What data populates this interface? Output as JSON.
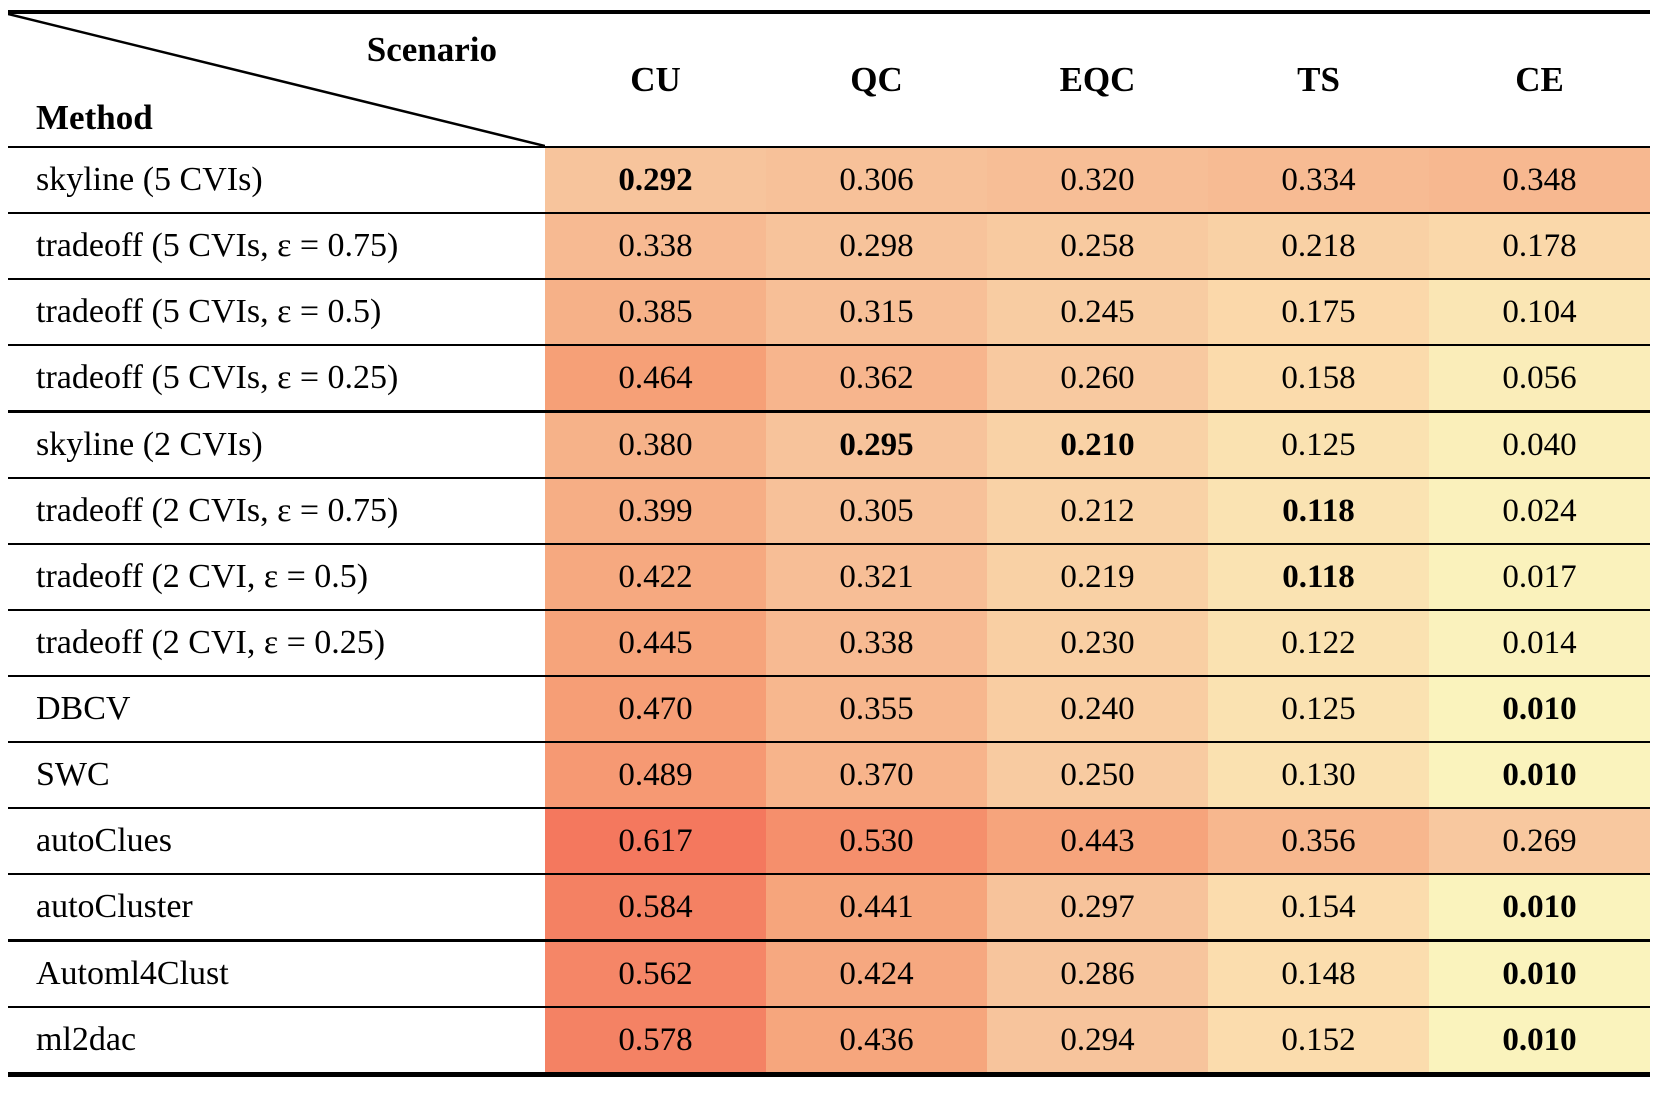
{
  "table": {
    "corner": {
      "top_label": "Scenario",
      "bottom_label": "Method"
    },
    "columns": [
      "CU",
      "QC",
      "EQC",
      "TS",
      "CE"
    ],
    "rows": [
      {
        "method": "skyline (5 CVIs)",
        "values": [
          "0.292",
          "0.306",
          "0.320",
          "0.334",
          "0.348"
        ],
        "bold": [
          true,
          false,
          false,
          false,
          false
        ],
        "colors": [
          "#F7C49C",
          "#F7C199",
          "#F7BE96",
          "#F7BB93",
          "#F7B890"
        ],
        "thick_bottom": false
      },
      {
        "method": "tradeoff (5 CVIs, ε = 0.75)",
        "values": [
          "0.338",
          "0.298",
          "0.258",
          "0.218",
          "0.178"
        ],
        "bold": [
          false,
          false,
          false,
          false,
          false
        ],
        "colors": [
          "#F7BA92",
          "#F7C39B",
          "#F8CAA0",
          "#F9D1A5",
          "#FAD8AA"
        ],
        "thick_bottom": false
      },
      {
        "method": "tradeoff (5 CVIs, ε = 0.5)",
        "values": [
          "0.385",
          "0.315",
          "0.245",
          "0.175",
          "0.104"
        ],
        "bold": [
          false,
          false,
          false,
          false,
          false
        ],
        "colors": [
          "#F6B188",
          "#F7BF97",
          "#F8CCA2",
          "#FBD8AA",
          "#FAE6B4"
        ],
        "thick_bottom": false
      },
      {
        "method": "tradeoff (5 CVIs, ε = 0.25)",
        "values": [
          "0.464",
          "0.362",
          "0.260",
          "0.158",
          "0.056"
        ],
        "bold": [
          false,
          false,
          false,
          false,
          false
        ],
        "colors": [
          "#F6A077",
          "#F7B58D",
          "#F8C9A0",
          "#FBDBAC",
          "#FAEDB9"
        ],
        "thick_bottom": true
      },
      {
        "method": "skyline (2 CVIs)",
        "values": [
          "0.380",
          "0.295",
          "0.210",
          "0.125",
          "0.040"
        ],
        "bold": [
          false,
          true,
          true,
          false,
          false
        ],
        "colors": [
          "#F6B289",
          "#F7C39B",
          "#F9D2A6",
          "#FAE2B1",
          "#FAEFBA"
        ],
        "thick_bottom": false
      },
      {
        "method": "tradeoff (2 CVIs, ε = 0.75)",
        "values": [
          "0.399",
          "0.305",
          "0.212",
          "0.118",
          "0.024"
        ],
        "bold": [
          false,
          false,
          false,
          true,
          false
        ],
        "colors": [
          "#F6AE85",
          "#F7C199",
          "#F9D2A6",
          "#FAE3B2",
          "#FAF1BC"
        ],
        "thick_bottom": false
      },
      {
        "method": "tradeoff (2 CVI, ε = 0.5)",
        "values": [
          "0.422",
          "0.321",
          "0.219",
          "0.118",
          "0.017"
        ],
        "bold": [
          false,
          false,
          false,
          true,
          false
        ],
        "colors": [
          "#F6A980",
          "#F7BE96",
          "#F9D1A5",
          "#FAE3B2",
          "#FAF2BC"
        ],
        "thick_bottom": false
      },
      {
        "method": "tradeoff (2 CVI, ε = 0.25)",
        "values": [
          "0.445",
          "0.338",
          "0.230",
          "0.122",
          "0.014"
        ],
        "bold": [
          false,
          false,
          false,
          false,
          false
        ],
        "colors": [
          "#F6A47B",
          "#F7BA92",
          "#F9CFA3",
          "#FAE2B1",
          "#FAF2BD"
        ],
        "thick_bottom": false
      },
      {
        "method": "DBCV",
        "values": [
          "0.470",
          "0.355",
          "0.240",
          "0.125",
          "0.010"
        ],
        "bold": [
          false,
          false,
          false,
          false,
          true
        ],
        "colors": [
          "#F69E76",
          "#F7B78E",
          "#F9CDA2",
          "#FAE2B1",
          "#FAF3BD"
        ],
        "thick_bottom": false
      },
      {
        "method": "SWC",
        "values": [
          "0.489",
          "0.370",
          "0.250",
          "0.130",
          "0.010"
        ],
        "bold": [
          false,
          false,
          false,
          false,
          true
        ],
        "colors": [
          "#F69973",
          "#F7B48B",
          "#F8CBA1",
          "#FAE1B0",
          "#FAF3BD"
        ],
        "thick_bottom": false
      },
      {
        "method": "autoClues",
        "values": [
          "0.617",
          "0.530",
          "0.443",
          "0.356",
          "0.269"
        ],
        "bold": [
          false,
          false,
          false,
          false,
          false
        ],
        "colors": [
          "#F4785E",
          "#F58F6C",
          "#F6A47C",
          "#F7B78E",
          "#F8C89F"
        ],
        "thick_bottom": false
      },
      {
        "method": "autoCluster",
        "values": [
          "0.584",
          "0.441",
          "0.297",
          "0.154",
          "0.010"
        ],
        "bold": [
          false,
          false,
          false,
          false,
          true
        ],
        "colors": [
          "#F48163",
          "#F6A57C",
          "#F7C39B",
          "#FBDCAD",
          "#FAF3BD"
        ],
        "thick_bottom": true
      },
      {
        "method": "Automl4Clust",
        "values": [
          "0.562",
          "0.424",
          "0.286",
          "0.148",
          "0.010"
        ],
        "bold": [
          false,
          false,
          false,
          false,
          true
        ],
        "colors": [
          "#F58667",
          "#F6A880",
          "#F7C59D",
          "#FBDDAE",
          "#FAF3BD"
        ],
        "thick_bottom": false
      },
      {
        "method": "ml2dac",
        "values": [
          "0.578",
          "0.436",
          "0.294",
          "0.152",
          "0.010"
        ],
        "bold": [
          false,
          false,
          false,
          false,
          true
        ],
        "colors": [
          "#F48264",
          "#F6A67D",
          "#F7C49C",
          "#FBDCAD",
          "#FAF3BD"
        ],
        "thick_bottom": false
      }
    ],
    "rule_color": "#000000"
  },
  "heatmap_scale": {
    "low_value": 0.01,
    "high_value": 0.617,
    "low_color": "#FAF3BD",
    "mid_color": "#F7C49C",
    "high_color": "#F4785E"
  },
  "chart_data": {
    "type": "heatmap",
    "title": "",
    "row_header": "Method",
    "column_header": "Scenario",
    "columns": [
      "CU",
      "QC",
      "EQC",
      "TS",
      "CE"
    ],
    "rows": [
      "skyline (5 CVIs)",
      "tradeoff (5 CVIs, ε = 0.75)",
      "tradeoff (5 CVIs, ε = 0.5)",
      "tradeoff (5 CVIs, ε = 0.25)",
      "skyline (2 CVIs)",
      "tradeoff (2 CVIs, ε = 0.75)",
      "tradeoff (2 CVI, ε = 0.5)",
      "tradeoff (2 CVI, ε = 0.25)",
      "DBCV",
      "SWC",
      "autoClues",
      "autoCluster",
      "Automl4Clust",
      "ml2dac"
    ],
    "values": [
      [
        0.292,
        0.306,
        0.32,
        0.334,
        0.348
      ],
      [
        0.338,
        0.298,
        0.258,
        0.218,
        0.178
      ],
      [
        0.385,
        0.315,
        0.245,
        0.175,
        0.104
      ],
      [
        0.464,
        0.362,
        0.26,
        0.158,
        0.056
      ],
      [
        0.38,
        0.295,
        0.21,
        0.125,
        0.04
      ],
      [
        0.399,
        0.305,
        0.212,
        0.118,
        0.024
      ],
      [
        0.422,
        0.321,
        0.219,
        0.118,
        0.017
      ],
      [
        0.445,
        0.338,
        0.23,
        0.122,
        0.014
      ],
      [
        0.47,
        0.355,
        0.24,
        0.125,
        0.01
      ],
      [
        0.489,
        0.37,
        0.25,
        0.13,
        0.01
      ],
      [
        0.617,
        0.53,
        0.443,
        0.356,
        0.269
      ],
      [
        0.584,
        0.441,
        0.297,
        0.154,
        0.01
      ],
      [
        0.562,
        0.424,
        0.286,
        0.148,
        0.01
      ],
      [
        0.578,
        0.436,
        0.294,
        0.152,
        0.01
      ]
    ],
    "bold_marks_best_per_column": true,
    "legend_position": "none",
    "grid": true
  }
}
